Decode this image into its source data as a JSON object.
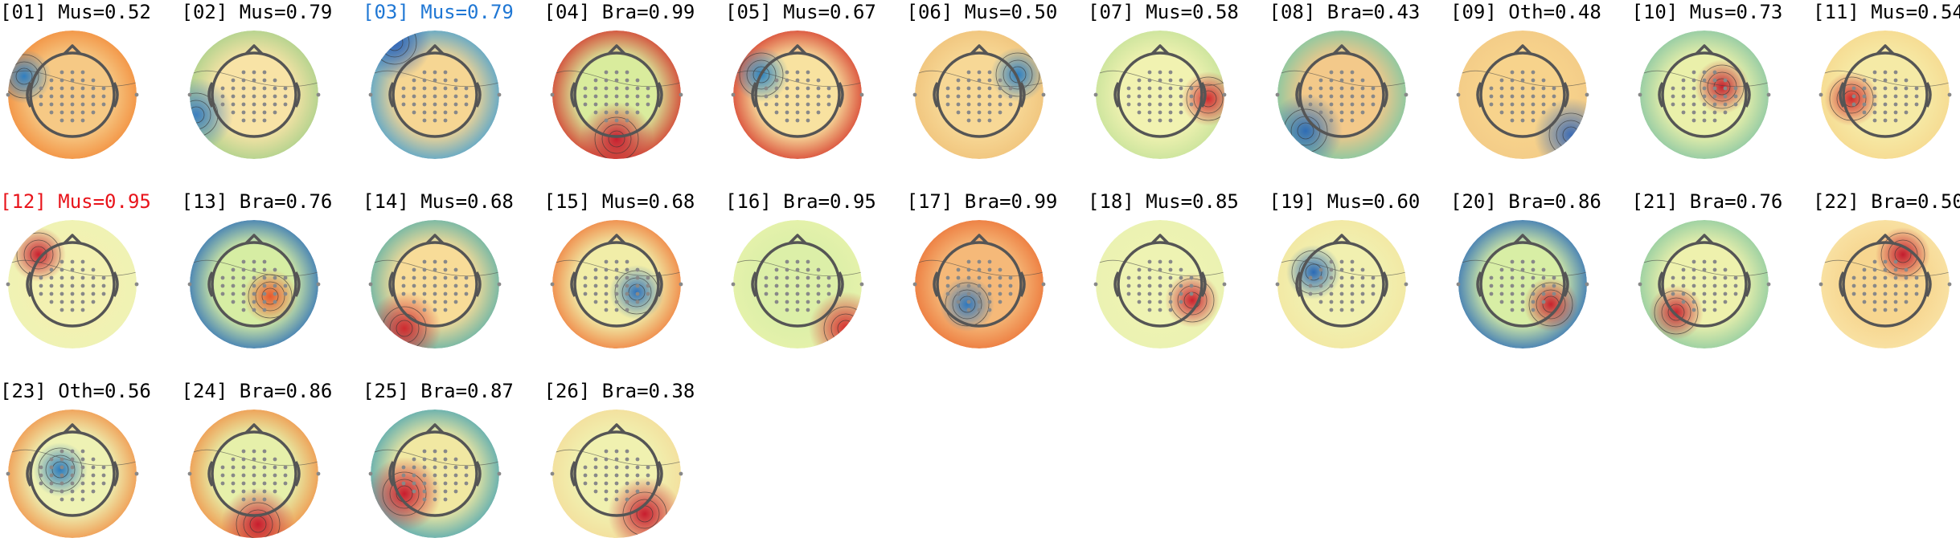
{
  "components": [
    {
      "label": "[01] Mus=0.52",
      "state": "normal",
      "bg": "#f6c985",
      "spots": [
        {
          "c": "#2f7fc1",
          "r": "big",
          "k": "neg"
        }
      ],
      "edge": "#f28c3b"
    },
    {
      "label": "[02] Mus=0.79",
      "state": "normal",
      "bg": "#f8e3a6",
      "spots": [
        {
          "c": "#3d7fbf",
          "r": "edge",
          "k": "neg"
        }
      ],
      "edge": "#a8d08a"
    },
    {
      "label": "[03] Mus=0.79",
      "state": "selected-blue",
      "bg": "#f6d693",
      "spots": [
        {
          "c": "#3566b6",
          "r": "edge",
          "k": "neg"
        }
      ],
      "edge": "#4ba1cf"
    },
    {
      "label": "[04] Bra=0.99",
      "state": "normal",
      "bg": "#d9ec9d",
      "spots": [
        {
          "c": "#c81d2e",
          "r": "edge",
          "k": "pos"
        }
      ],
      "edge": "#d2352b"
    },
    {
      "label": "[05] Mus=0.67",
      "state": "normal",
      "bg": "#f8e2a0",
      "spots": [
        {
          "c": "#2d84c2",
          "r": "big",
          "k": "neg"
        }
      ],
      "edge": "#d63b2c"
    },
    {
      "label": "[06] Mus=0.50",
      "state": "normal",
      "bg": "#f7d896",
      "spots": [
        {
          "c": "#2d7fc2",
          "r": "big",
          "k": "neg"
        }
      ],
      "edge": "#f0c37b"
    },
    {
      "label": "[07] Mus=0.58",
      "state": "normal",
      "bg": "#f1f2b1",
      "spots": [
        {
          "c": "#d42b2f",
          "r": "big",
          "k": "pos"
        }
      ],
      "edge": "#c6e29a"
    },
    {
      "label": "[08] Bra=0.43",
      "state": "normal",
      "bg": "#f3c98a",
      "spots": [
        {
          "c": "#2e6db5",
          "r": "edge",
          "k": "neg"
        }
      ],
      "edge": "#7cc7a4"
    },
    {
      "label": "[09] Oth=0.48",
      "state": "normal",
      "bg": "#f7d38c",
      "spots": [
        {
          "c": "#3e6db4",
          "r": "edge",
          "k": "neg"
        }
      ],
      "edge": "#f3cb87"
    },
    {
      "label": "[10] Mus=0.73",
      "state": "normal",
      "bg": "#eaf0aa",
      "spots": [
        {
          "c": "#c6222e",
          "r": "big",
          "k": "pos"
        }
      ],
      "edge": "#86c5a3"
    },
    {
      "label": "[11] Mus=0.54",
      "state": "normal",
      "bg": "#f5eaa6",
      "spots": [
        {
          "c": "#cf2b2c",
          "r": "big",
          "k": "pos"
        }
      ],
      "edge": "#f7d98f"
    },
    {
      "label": "[12] Mus=0.95",
      "state": "selected-red",
      "bg": "#f3f1b2",
      "spots": [
        {
          "c": "#c8212f",
          "r": "big",
          "k": "pos"
        }
      ],
      "edge": "#eef2b4"
    },
    {
      "label": "[13] Bra=0.76",
      "state": "normal",
      "bg": "#d6eda3",
      "spots": [
        {
          "c": "#e9592d",
          "r": "big",
          "k": "pos"
        }
      ],
      "edge": "#2d6fb7"
    },
    {
      "label": "[14] Mus=0.68",
      "state": "normal",
      "bg": "#f8dc98",
      "spots": [
        {
          "c": "#cf2b2f",
          "r": "edge",
          "k": "pos"
        }
      ],
      "edge": "#5fb1a7"
    },
    {
      "label": "[15] Mus=0.68",
      "state": "normal",
      "bg": "#f1eda8",
      "spots": [
        {
          "c": "#2f73bb",
          "r": "big",
          "k": "neg"
        }
      ],
      "edge": "#ef7c3c"
    },
    {
      "label": "[16] Bra=0.95",
      "state": "normal",
      "bg": "#dcefa8",
      "spots": [
        {
          "c": "#d62f2e",
          "r": "edge",
          "k": "pos"
        }
      ],
      "edge": "#e6f2ab"
    },
    {
      "label": "[17] Bra=0.99",
      "state": "normal",
      "bg": "#f5b979",
      "spots": [
        {
          "c": "#2f78be",
          "r": "big",
          "k": "neg"
        }
      ],
      "edge": "#ec7438"
    },
    {
      "label": "[18] Mus=0.85",
      "state": "normal",
      "bg": "#eef3b3",
      "spots": [
        {
          "c": "#cb222e",
          "r": "big",
          "k": "pos"
        }
      ],
      "edge": "#eaf2b1"
    },
    {
      "label": "[19] Mus=0.60",
      "state": "normal",
      "bg": "#f1f0b0",
      "spots": [
        {
          "c": "#2a6ab6",
          "r": "big",
          "k": "neg"
        }
      ],
      "edge": "#f2e7a2"
    },
    {
      "label": "[20] Bra=0.86",
      "state": "normal",
      "bg": "#d8eea5",
      "spots": [
        {
          "c": "#c7232e",
          "r": "big",
          "k": "pos"
        }
      ],
      "edge": "#2d6db7"
    },
    {
      "label": "[21] Bra=0.76",
      "state": "normal",
      "bg": "#eef1ad",
      "spots": [
        {
          "c": "#c7242f",
          "r": "big",
          "k": "pos"
        }
      ],
      "edge": "#8ccaa0"
    },
    {
      "label": "[22] Bra=0.50",
      "state": "normal",
      "bg": "#f7d690",
      "spots": [
        {
          "c": "#c31c2e",
          "r": "big",
          "k": "pos"
        }
      ],
      "edge": "#f8e3a6"
    },
    {
      "label": "[23] Oth=0.56",
      "state": "normal",
      "bg": "#eef2b4",
      "spots": [
        {
          "c": "#2d7cbd",
          "r": "big",
          "k": "neg"
        }
      ],
      "edge": "#f09147"
    },
    {
      "label": "[24] Bra=0.86",
      "state": "normal",
      "bg": "#e6f0aa",
      "spots": [
        {
          "c": "#c81d2e",
          "r": "edge",
          "k": "pos"
        }
      ],
      "edge": "#f09147"
    },
    {
      "label": "[25] Bra=0.87",
      "state": "normal",
      "bg": "#f1e8a2",
      "spots": [
        {
          "c": "#c81d2e",
          "r": "edge",
          "k": "pos"
        }
      ],
      "edge": "#4ea6b1"
    },
    {
      "label": "[26] Bra=0.38",
      "state": "normal",
      "bg": "#f0f1b0",
      "spots": [
        {
          "c": "#c81d2e",
          "r": "edge",
          "k": "pos"
        }
      ],
      "edge": "#f4dd9b"
    }
  ]
}
